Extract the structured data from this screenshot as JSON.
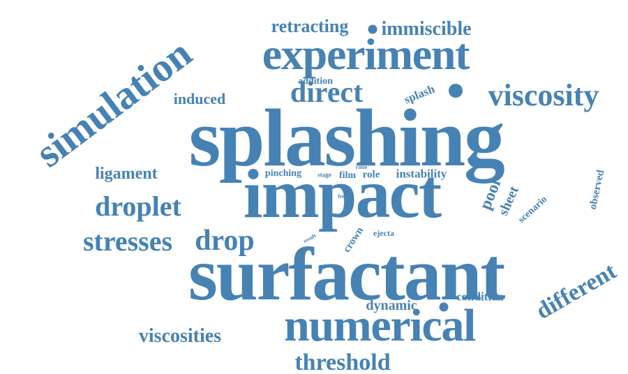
{
  "color": "#4682b4",
  "words": [
    "splashing",
    "surfactant",
    "impact",
    "experiment",
    "numerical",
    "simulation",
    "viscosity",
    "direct",
    "droplet",
    "threshold",
    "stresses",
    "drop",
    "different",
    "viscosities",
    "retracting",
    "immiscible",
    "ligament",
    "induced",
    "dynamic",
    "instability",
    "condition",
    "splash",
    "pool",
    "sheet",
    "observed",
    "scenario",
    "crown",
    "ejecta",
    "addition",
    "pinching",
    "film",
    "role",
    "stage",
    "ratio",
    "free",
    "result"
  ]
}
